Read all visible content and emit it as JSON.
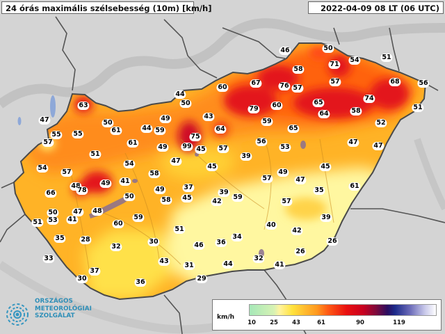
{
  "header": {
    "title": "24 órás maximális szélsebesség (10m) [km/h]",
    "timestamp": "2022-04-09 08 LT (06 UTC)"
  },
  "legend": {
    "unit": "km/h",
    "ticks": [
      "10",
      "25",
      "43",
      "61",
      "90",
      "119"
    ]
  },
  "logo": {
    "line1": "ORSZÁGOS",
    "line2": "METEOROLÓGIAI",
    "line3": "SZOLGÁLAT"
  },
  "stations": [
    "46",
    "50",
    "71",
    "54",
    "51",
    "58",
    "67",
    "76",
    "57",
    "57",
    "68",
    "56",
    "44",
    "60",
    "50",
    "65",
    "74",
    "79",
    "60",
    "64",
    "58",
    "51",
    "63",
    "49",
    "43",
    "64",
    "59",
    "65",
    "52",
    "47",
    "50",
    "61",
    "44",
    "59",
    "75",
    "99",
    "45",
    "57",
    "56",
    "53",
    "47",
    "47",
    "55",
    "55",
    "61",
    "49",
    "57",
    "47",
    "45",
    "39",
    "51",
    "54",
    "58",
    "57",
    "49",
    "47",
    "45",
    "54",
    "57",
    "48",
    "49",
    "37",
    "39",
    "35",
    "61",
    "66",
    "78",
    "49",
    "41",
    "58",
    "45",
    "59",
    "57",
    "42",
    "48",
    "50",
    "47",
    "50",
    "41",
    "60",
    "59",
    "51",
    "40",
    "42",
    "39",
    "51",
    "53",
    "35",
    "28",
    "34",
    "36",
    "32",
    "30",
    "46",
    "26",
    "33",
    "43",
    "26",
    "37",
    "31",
    "32",
    "41",
    "44",
    "30",
    "36",
    "29"
  ],
  "colors": {
    "land_low": "#fff7a0",
    "land_mid": "#ffb326",
    "land_high": "#ff6a10",
    "land_peak": "#e3121b",
    "background": "#d4d4d4",
    "border": "#4a4a4a",
    "logo": "#2f8fb8"
  }
}
